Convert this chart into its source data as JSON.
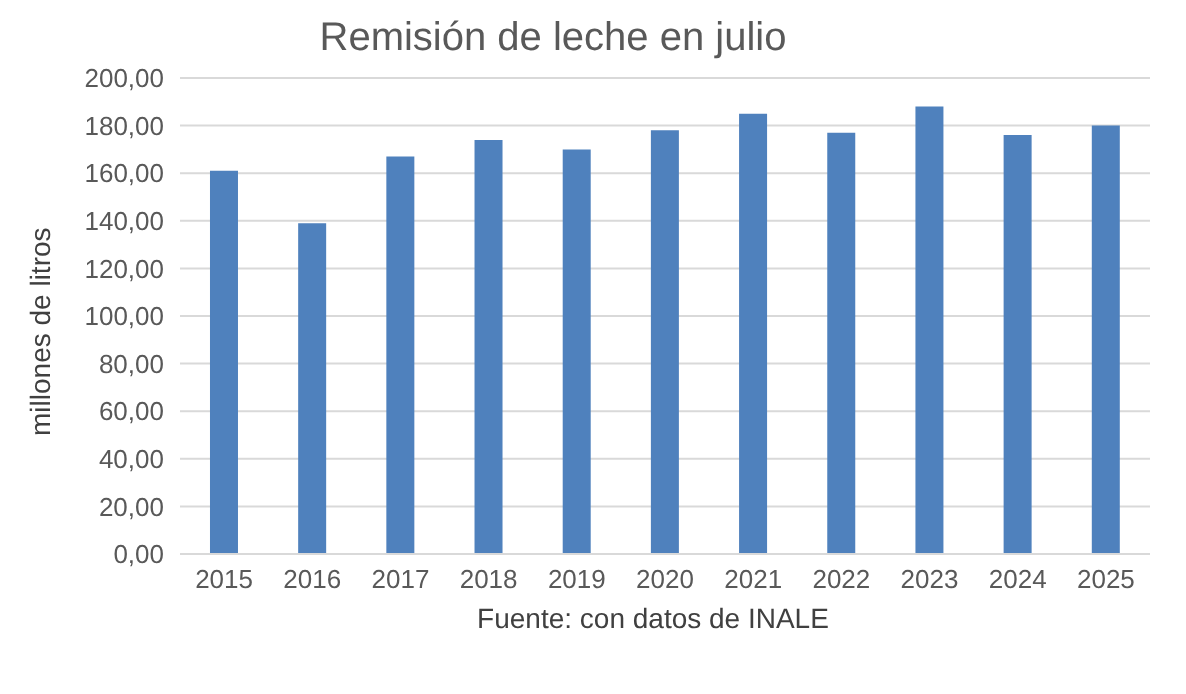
{
  "chart_data": {
    "type": "bar",
    "title": "Remisión de leche en julio",
    "ylabel": "millones de litros",
    "categories": [
      "2015",
      "2016",
      "2017",
      "2018",
      "2019",
      "2020",
      "2021",
      "2022",
      "2023",
      "2024",
      "2025"
    ],
    "values": [
      161,
      139,
      167,
      174,
      170,
      178,
      185,
      177,
      188,
      176,
      180
    ],
    "color": "#4f81bd",
    "ylim": [
      0,
      200
    ],
    "yticks": [
      {
        "value": 0,
        "label": "0,00"
      },
      {
        "value": 20,
        "label": "20,00"
      },
      {
        "value": 40,
        "label": "40,00"
      },
      {
        "value": 60,
        "label": "60,00"
      },
      {
        "value": 80,
        "label": "80,00"
      },
      {
        "value": 100,
        "label": "100,00"
      },
      {
        "value": 120,
        "label": "120,00"
      },
      {
        "value": 140,
        "label": "140,00"
      },
      {
        "value": 160,
        "label": "160,00"
      },
      {
        "value": 180,
        "label": "180,00"
      },
      {
        "value": 200,
        "label": "200,00"
      }
    ],
    "grid": "y",
    "annotations": [
      "Fuente: con datos de INALE"
    ]
  }
}
